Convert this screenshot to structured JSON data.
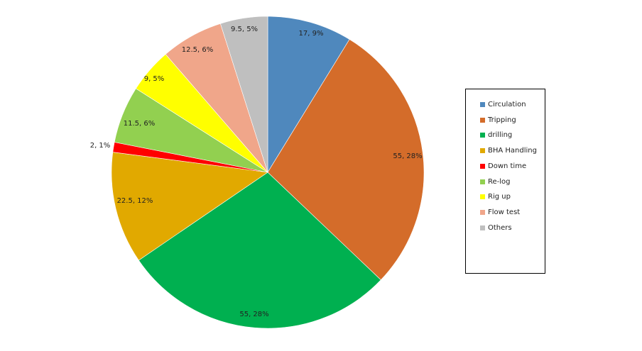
{
  "chart_data": {
    "type": "pie",
    "title": "",
    "categories": [
      "Circulation",
      "Tripping",
      "drilling",
      "BHA Handling",
      "Down time",
      "Re-log",
      "Rig up",
      "Flow test",
      "Others"
    ],
    "values": [
      17,
      55,
      55,
      22.5,
      2,
      11.5,
      9,
      12.5,
      9.5
    ],
    "percent_labels": [
      "9%",
      "28%",
      "28%",
      "12%",
      "1%",
      "6%",
      "5%",
      "6%",
      "5%"
    ],
    "data_labels": [
      "17, 9%",
      "55, 28%",
      "55, 28%",
      "22.5, 12%",
      "2, 1%",
      "11.5, 6%",
      "9, 5%",
      "12.5, 6%",
      "9.5, 5%"
    ],
    "colors": [
      "#4F88BD",
      "#D46C2A",
      "#00B050",
      "#E1A900",
      "#FF0000",
      "#92D050",
      "#FFFF00",
      "#F0A68A",
      "#BFBFBF"
    ],
    "start_angle_deg": 0,
    "direction": "clockwise",
    "legend_position": "right"
  },
  "legend": {
    "items": [
      {
        "label": "Circulation"
      },
      {
        "label": "Tripping"
      },
      {
        "label": "drilling"
      },
      {
        "label": "BHA Handling"
      },
      {
        "label": "Down time"
      },
      {
        "label": "Re-log"
      },
      {
        "label": "Rig up"
      },
      {
        "label": "Flow test"
      },
      {
        "label": "Others"
      }
    ]
  }
}
